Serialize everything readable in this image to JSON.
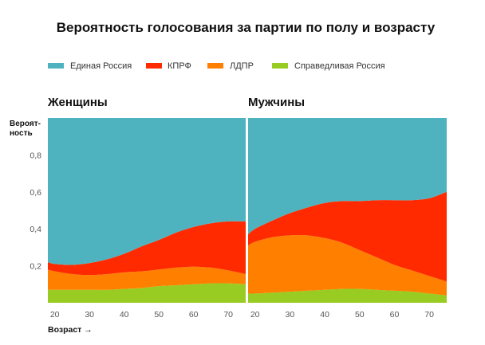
{
  "chart_data": {
    "type": "area",
    "title": "Вероятность голосования за партии по полу и возрасту",
    "ylabel": "Вероят-\nность",
    "xlabel": "Возраст →",
    "xlim": [
      18,
      75
    ],
    "ylim": [
      0,
      1
    ],
    "x_ticks": [
      20,
      30,
      40,
      50,
      60,
      70
    ],
    "y_ticks": [
      0.2,
      0.4,
      0.6,
      0.8
    ],
    "y_tick_labels": [
      "0,2",
      "0,4",
      "0,6",
      "0,8"
    ],
    "legend": [
      {
        "name": "Единая Россия",
        "color": "#4fb3bf"
      },
      {
        "name": "КПРФ",
        "color": "#ff2a00"
      },
      {
        "name": "ЛДПР",
        "color": "#ff8000"
      },
      {
        "name": "Справедливая Россия",
        "color": "#99cc22"
      }
    ],
    "stack_order": [
      "Справедливая Россия",
      "ЛДПР",
      "КПРФ",
      "Единая Россия"
    ],
    "panels": [
      {
        "title": "Женщины",
        "x": [
          18,
          20,
          25,
          30,
          35,
          40,
          45,
          50,
          55,
          60,
          65,
          70,
          75
        ],
        "series": [
          {
            "name": "Справедливая Россия",
            "values": [
              0.07,
              0.07,
              0.07,
              0.07,
              0.07,
              0.075,
              0.08,
              0.09,
              0.095,
              0.1,
              0.105,
              0.105,
              0.1
            ]
          },
          {
            "name": "ЛДПР",
            "values": [
              0.11,
              0.1,
              0.085,
              0.08,
              0.085,
              0.09,
              0.09,
              0.09,
              0.095,
              0.095,
              0.085,
              0.07,
              0.055
            ]
          },
          {
            "name": "КПРФ",
            "values": [
              0.04,
              0.04,
              0.05,
              0.065,
              0.08,
              0.1,
              0.135,
              0.16,
              0.19,
              0.215,
              0.24,
              0.265,
              0.285
            ]
          },
          {
            "name": "Единая Россия",
            "values": [
              0.78,
              0.79,
              0.795,
              0.785,
              0.765,
              0.735,
              0.695,
              0.66,
              0.62,
              0.59,
              0.57,
              0.56,
              0.56
            ]
          }
        ]
      },
      {
        "title": "Мужчины",
        "x": [
          18,
          20,
          25,
          30,
          35,
          40,
          45,
          50,
          55,
          60,
          65,
          70,
          75
        ],
        "series": [
          {
            "name": "Справедливая Россия",
            "values": [
              0.05,
              0.05,
              0.055,
              0.06,
              0.065,
              0.07,
              0.075,
              0.075,
              0.07,
              0.065,
              0.06,
              0.05,
              0.04
            ]
          },
          {
            "name": "ЛДПР",
            "values": [
              0.26,
              0.28,
              0.3,
              0.305,
              0.3,
              0.28,
              0.25,
              0.21,
              0.175,
              0.14,
              0.115,
              0.095,
              0.075
            ]
          },
          {
            "name": "КПРФ",
            "values": [
              0.06,
              0.07,
              0.09,
              0.12,
              0.15,
              0.19,
              0.225,
              0.265,
              0.31,
              0.35,
              0.38,
              0.42,
              0.485
            ]
          },
          {
            "name": "Единая Россия",
            "values": [
              0.63,
              0.6,
              0.555,
              0.515,
              0.485,
              0.46,
              0.45,
              0.45,
              0.445,
              0.445,
              0.445,
              0.435,
              0.4
            ]
          }
        ]
      }
    ]
  }
}
